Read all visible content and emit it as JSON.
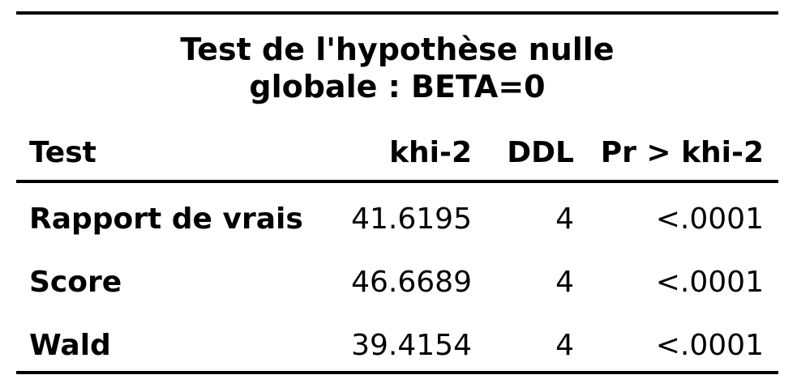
{
  "table": {
    "title_line1": "Test de l'hypothèse nulle",
    "title_line2": "globale : BETA=0",
    "headers": {
      "test": "Test",
      "khi2": "khi-2",
      "ddl": "DDL",
      "pr": "Pr > khi-2"
    },
    "rows": [
      {
        "test": "Rapport de vrais",
        "khi2": "41.6195",
        "ddl": "4",
        "pr": "<.0001"
      },
      {
        "test": "Score",
        "khi2": "46.6689",
        "ddl": "4",
        "pr": "<.0001"
      },
      {
        "test": "Wald",
        "khi2": "39.4154",
        "ddl": "4",
        "pr": "<.0001"
      }
    ]
  }
}
